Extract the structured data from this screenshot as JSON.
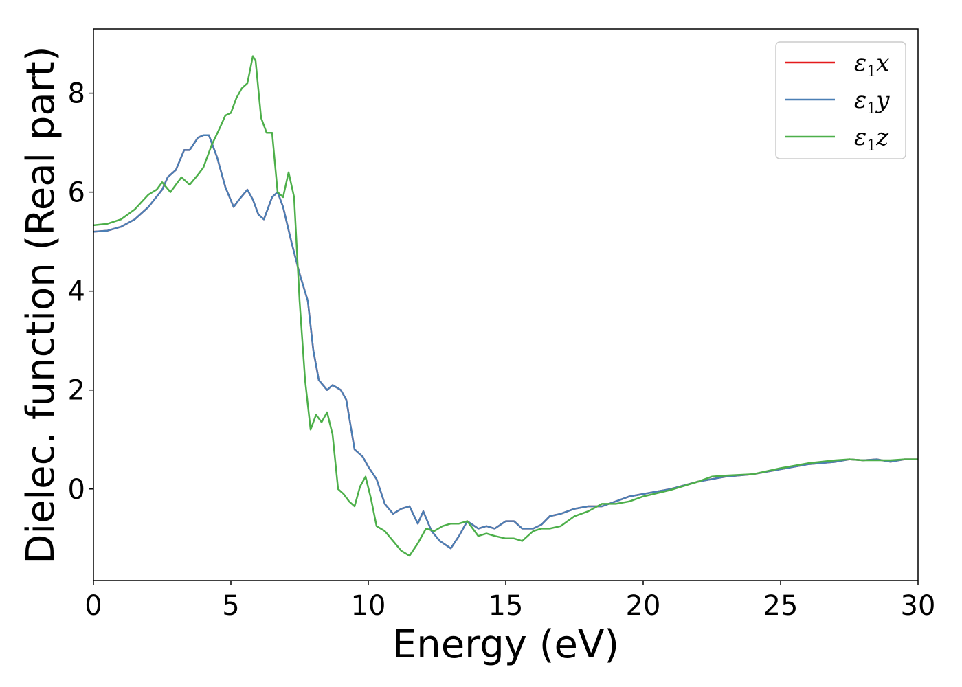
{
  "chart_data": {
    "type": "line",
    "xlabel": "Energy (eV)",
    "ylabel": "Dielec. function (Real part)",
    "xlim": [
      0,
      30
    ],
    "ylim": [
      -1.85,
      9.3
    ],
    "xticks": [
      0,
      5,
      10,
      15,
      20,
      25,
      30
    ],
    "yticks": [
      0,
      2,
      4,
      6,
      8
    ],
    "xtick_labels": [
      "0",
      "5",
      "10",
      "15",
      "20",
      "25",
      "30"
    ],
    "ytick_labels": [
      "0",
      "2",
      "4",
      "6",
      "8"
    ],
    "grid": false,
    "legend_position": "top-right",
    "series": [
      {
        "name": "ε1x",
        "label_base": "ε",
        "label_sub": "1",
        "label_var": "x",
        "color": "#e41a1c",
        "x": [
          0,
          0.5,
          1,
          1.5,
          2,
          2.5,
          2.7,
          3.0,
          3.3,
          3.5,
          3.8,
          4.0,
          4.2,
          4.5,
          4.8,
          5.1,
          5.3,
          5.6,
          5.8,
          6.0,
          6.2,
          6.5,
          6.7,
          6.9,
          7.2,
          7.5,
          7.8,
          8.0,
          8.2,
          8.5,
          8.7,
          9.0,
          9.2,
          9.5,
          9.8,
          10.0,
          10.3,
          10.6,
          10.9,
          11.2,
          11.5,
          11.8,
          12.0,
          12.3,
          12.6,
          13.0,
          13.3,
          13.6,
          14.0,
          14.3,
          14.6,
          15.0,
          15.3,
          15.6,
          16.0,
          16.3,
          16.6,
          17.0,
          17.5,
          18.0,
          18.5,
          19.0,
          19.5,
          20.0,
          21.0,
          22.0,
          23.0,
          24.0,
          25.0,
          26.0,
          27.0,
          27.5,
          28.0,
          28.5,
          29.0,
          29.5,
          30.0
        ],
        "y": [
          5.2,
          5.22,
          5.3,
          5.45,
          5.7,
          6.05,
          6.3,
          6.45,
          6.85,
          6.85,
          7.1,
          7.15,
          7.15,
          6.7,
          6.1,
          5.7,
          5.85,
          6.05,
          5.85,
          5.55,
          5.45,
          5.9,
          6.0,
          5.7,
          5.0,
          4.35,
          3.8,
          2.8,
          2.2,
          2.0,
          2.1,
          2.0,
          1.8,
          0.8,
          0.65,
          0.45,
          0.2,
          -0.3,
          -0.5,
          -0.4,
          -0.35,
          -0.7,
          -0.45,
          -0.85,
          -1.05,
          -1.2,
          -0.95,
          -0.65,
          -0.8,
          -0.75,
          -0.8,
          -0.65,
          -0.65,
          -0.8,
          -0.8,
          -0.72,
          -0.55,
          -0.5,
          -0.4,
          -0.35,
          -0.35,
          -0.25,
          -0.15,
          -0.1,
          0.0,
          0.15,
          0.25,
          0.3,
          0.4,
          0.5,
          0.55,
          0.6,
          0.58,
          0.6,
          0.55,
          0.6,
          0.6
        ]
      },
      {
        "name": "ε1y",
        "label_base": "ε",
        "label_sub": "1",
        "label_var": "y",
        "color": "#4a7fb5",
        "x": [
          0,
          0.5,
          1,
          1.5,
          2,
          2.5,
          2.7,
          3.0,
          3.3,
          3.5,
          3.8,
          4.0,
          4.2,
          4.5,
          4.8,
          5.1,
          5.3,
          5.6,
          5.8,
          6.0,
          6.2,
          6.5,
          6.7,
          6.9,
          7.2,
          7.5,
          7.8,
          8.0,
          8.2,
          8.5,
          8.7,
          9.0,
          9.2,
          9.5,
          9.8,
          10.0,
          10.3,
          10.6,
          10.9,
          11.2,
          11.5,
          11.8,
          12.0,
          12.3,
          12.6,
          13.0,
          13.3,
          13.6,
          14.0,
          14.3,
          14.6,
          15.0,
          15.3,
          15.6,
          16.0,
          16.3,
          16.6,
          17.0,
          17.5,
          18.0,
          18.5,
          19.0,
          19.5,
          20.0,
          21.0,
          22.0,
          23.0,
          24.0,
          25.0,
          26.0,
          27.0,
          27.5,
          28.0,
          28.5,
          29.0,
          29.5,
          30.0
        ],
        "y": [
          5.2,
          5.22,
          5.3,
          5.45,
          5.7,
          6.05,
          6.3,
          6.45,
          6.85,
          6.85,
          7.1,
          7.15,
          7.15,
          6.7,
          6.1,
          5.7,
          5.85,
          6.05,
          5.85,
          5.55,
          5.45,
          5.9,
          6.0,
          5.7,
          5.0,
          4.35,
          3.8,
          2.8,
          2.2,
          2.0,
          2.1,
          2.0,
          1.8,
          0.8,
          0.65,
          0.45,
          0.2,
          -0.3,
          -0.5,
          -0.4,
          -0.35,
          -0.7,
          -0.45,
          -0.85,
          -1.05,
          -1.2,
          -0.95,
          -0.65,
          -0.8,
          -0.75,
          -0.8,
          -0.65,
          -0.65,
          -0.8,
          -0.8,
          -0.72,
          -0.55,
          -0.5,
          -0.4,
          -0.35,
          -0.35,
          -0.25,
          -0.15,
          -0.1,
          0.0,
          0.15,
          0.25,
          0.3,
          0.4,
          0.5,
          0.55,
          0.6,
          0.58,
          0.6,
          0.55,
          0.6,
          0.6
        ]
      },
      {
        "name": "ε1z",
        "label_base": "ε",
        "label_sub": "1",
        "label_var": "z",
        "color": "#4daf4a",
        "x": [
          0,
          0.5,
          1,
          1.5,
          2,
          2.3,
          2.5,
          2.8,
          3.0,
          3.2,
          3.5,
          3.8,
          4.0,
          4.3,
          4.6,
          4.8,
          5.0,
          5.2,
          5.4,
          5.6,
          5.8,
          5.9,
          6.1,
          6.3,
          6.5,
          6.7,
          6.9,
          7.1,
          7.3,
          7.5,
          7.7,
          7.9,
          8.1,
          8.3,
          8.5,
          8.7,
          8.9,
          9.1,
          9.3,
          9.5,
          9.7,
          9.9,
          10.1,
          10.3,
          10.6,
          10.9,
          11.2,
          11.5,
          11.8,
          12.1,
          12.4,
          12.7,
          13.0,
          13.3,
          13.6,
          14.0,
          14.3,
          14.6,
          15.0,
          15.3,
          15.6,
          16.0,
          16.3,
          16.6,
          17.0,
          17.5,
          18.0,
          18.5,
          19.0,
          19.5,
          20.0,
          21.0,
          22.0,
          22.5,
          23.0,
          24.0,
          25.0,
          26.0,
          27.0,
          27.5,
          28.0,
          28.5,
          29.0,
          29.5,
          30.0
        ],
        "y": [
          5.33,
          5.36,
          5.45,
          5.65,
          5.95,
          6.05,
          6.2,
          6.0,
          6.15,
          6.3,
          6.15,
          6.35,
          6.5,
          6.95,
          7.3,
          7.55,
          7.6,
          7.9,
          8.1,
          8.2,
          8.75,
          8.65,
          7.5,
          7.2,
          7.2,
          6.0,
          5.9,
          6.4,
          5.9,
          3.8,
          2.2,
          1.2,
          1.5,
          1.35,
          1.55,
          1.1,
          0.0,
          -0.1,
          -0.25,
          -0.35,
          0.05,
          0.25,
          -0.2,
          -0.75,
          -0.85,
          -1.05,
          -1.25,
          -1.35,
          -1.1,
          -0.8,
          -0.85,
          -0.75,
          -0.7,
          -0.7,
          -0.65,
          -0.95,
          -0.9,
          -0.95,
          -1.0,
          -1.0,
          -1.05,
          -0.85,
          -0.8,
          -0.8,
          -0.75,
          -0.55,
          -0.45,
          -0.3,
          -0.3,
          -0.25,
          -0.15,
          -0.02,
          0.15,
          0.25,
          0.27,
          0.3,
          0.42,
          0.52,
          0.58,
          0.6,
          0.58,
          0.58,
          0.58,
          0.6,
          0.6
        ]
      }
    ]
  }
}
